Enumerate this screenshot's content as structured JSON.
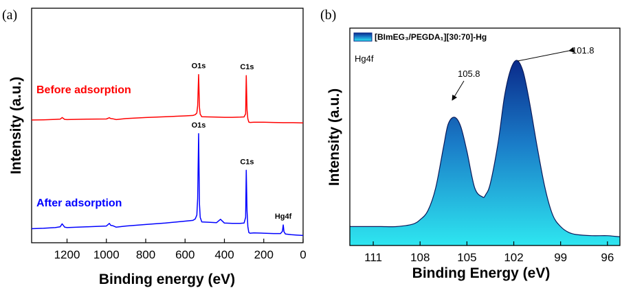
{
  "chart_data": [
    {
      "panel_label": "(a)",
      "type": "line",
      "xlabel": "Binding energy (eV)",
      "ylabel": "Intensity (a.u.)",
      "xlim": [
        1380,
        0
      ],
      "x_reversed": true,
      "x_ticks": [
        1200,
        1000,
        800,
        600,
        400,
        200,
        0
      ],
      "y_ticks_shown": false,
      "series": [
        {
          "name": "Before adsorption",
          "color": "#ff0000",
          "x": [
            1380,
            1320,
            1260,
            1235,
            1225,
            1212,
            1200,
            1100,
            1000,
            985,
            978,
            968,
            950,
            900,
            800,
            700,
            600,
            560,
            548,
            540,
            536,
            531,
            527,
            523,
            515,
            480,
            440,
            400,
            360,
            320,
            300,
            292,
            289,
            285,
            281,
            276,
            270,
            250,
            200,
            150,
            100,
            50,
            0
          ],
          "y": [
            30,
            31,
            33,
            34,
            42,
            33,
            32,
            34,
            35,
            41,
            37,
            36,
            32,
            37,
            42,
            46,
            50,
            52,
            56,
            64,
            100,
            251,
            92,
            58,
            46,
            45,
            44,
            43,
            43,
            44,
            45,
            60,
            246,
            80,
            36,
            20,
            18,
            19,
            19,
            18,
            17,
            17,
            16
          ]
        },
        {
          "name": "After adsorption",
          "color": "#0000ff",
          "x": [
            1380,
            1320,
            1260,
            1235,
            1225,
            1212,
            1200,
            1100,
            1000,
            985,
            978,
            968,
            950,
            900,
            800,
            700,
            600,
            560,
            548,
            540,
            536,
            531,
            527,
            523,
            515,
            480,
            440,
            420,
            400,
            360,
            320,
            300,
            292,
            289,
            285,
            281,
            276,
            270,
            250,
            200,
            150,
            115,
            105,
            101,
            97,
            90,
            60,
            30,
            0
          ],
          "y": [
            30,
            31,
            33,
            35,
            43,
            34,
            33,
            35,
            37,
            44,
            39,
            38,
            34,
            37,
            41,
            45,
            50,
            52,
            56,
            66,
            110,
            282,
            96,
            60,
            48,
            47,
            46,
            55,
            45,
            44,
            44,
            45,
            60,
            185,
            78,
            36,
            20,
            18,
            19,
            18,
            17,
            17,
            23,
            40,
            22,
            16,
            14,
            13,
            12
          ]
        }
      ],
      "annotations": [
        {
          "series": "Before adsorption",
          "text": "O1s",
          "x": 531
        },
        {
          "series": "Before adsorption",
          "text": "C1s",
          "x": 285
        },
        {
          "series": "After adsorption",
          "text": "O1s",
          "x": 531
        },
        {
          "series": "After adsorption",
          "text": "C1s",
          "x": 285
        },
        {
          "series": "After adsorption",
          "text": "Hg4f",
          "x": 101
        }
      ]
    },
    {
      "panel_label": "(b)",
      "type": "area",
      "xlabel": "Binding Energy (eV)",
      "ylabel": "Intensity (a.u.)",
      "xlim": [
        112.5,
        95.2
      ],
      "x_reversed": true,
      "x_ticks": [
        111,
        108,
        105,
        102,
        99,
        96
      ],
      "y_ticks_shown": false,
      "legend": {
        "label": "[BImEG₃/PEGDA₁][30:70]-Hg",
        "position": "top-left"
      },
      "annotation": "Hg4f",
      "peaks": [
        {
          "label": "105.8",
          "x": 105.8
        },
        {
          "label": "101.8",
          "x": 101.8
        }
      ],
      "series": [
        {
          "name": "[BImEG₃/PEGDA₁][30:70]-Hg",
          "color_top": "#0a2a8a",
          "color_bottom": "#2ee6f0",
          "x": [
            112.5,
            111.5,
            110.5,
            109.5,
            108.5,
            108.0,
            107.5,
            107.0,
            106.5,
            106.2,
            105.8,
            105.4,
            105.0,
            104.5,
            104.0,
            103.8,
            103.5,
            103.0,
            102.6,
            102.2,
            101.8,
            101.4,
            101.0,
            100.5,
            100.0,
            99.5,
            99.0,
            98.5,
            98.0,
            97.0,
            96.0,
            95.2
          ],
          "y": [
            5,
            5,
            5,
            5,
            6,
            8,
            12,
            22,
            40,
            50,
            53,
            49,
            38,
            22,
            18,
            19,
            24,
            42,
            62,
            74,
            78,
            73,
            60,
            40,
            22,
            10,
            5,
            2.5,
            1.5,
            1,
            1,
            0.5
          ]
        }
      ]
    }
  ]
}
